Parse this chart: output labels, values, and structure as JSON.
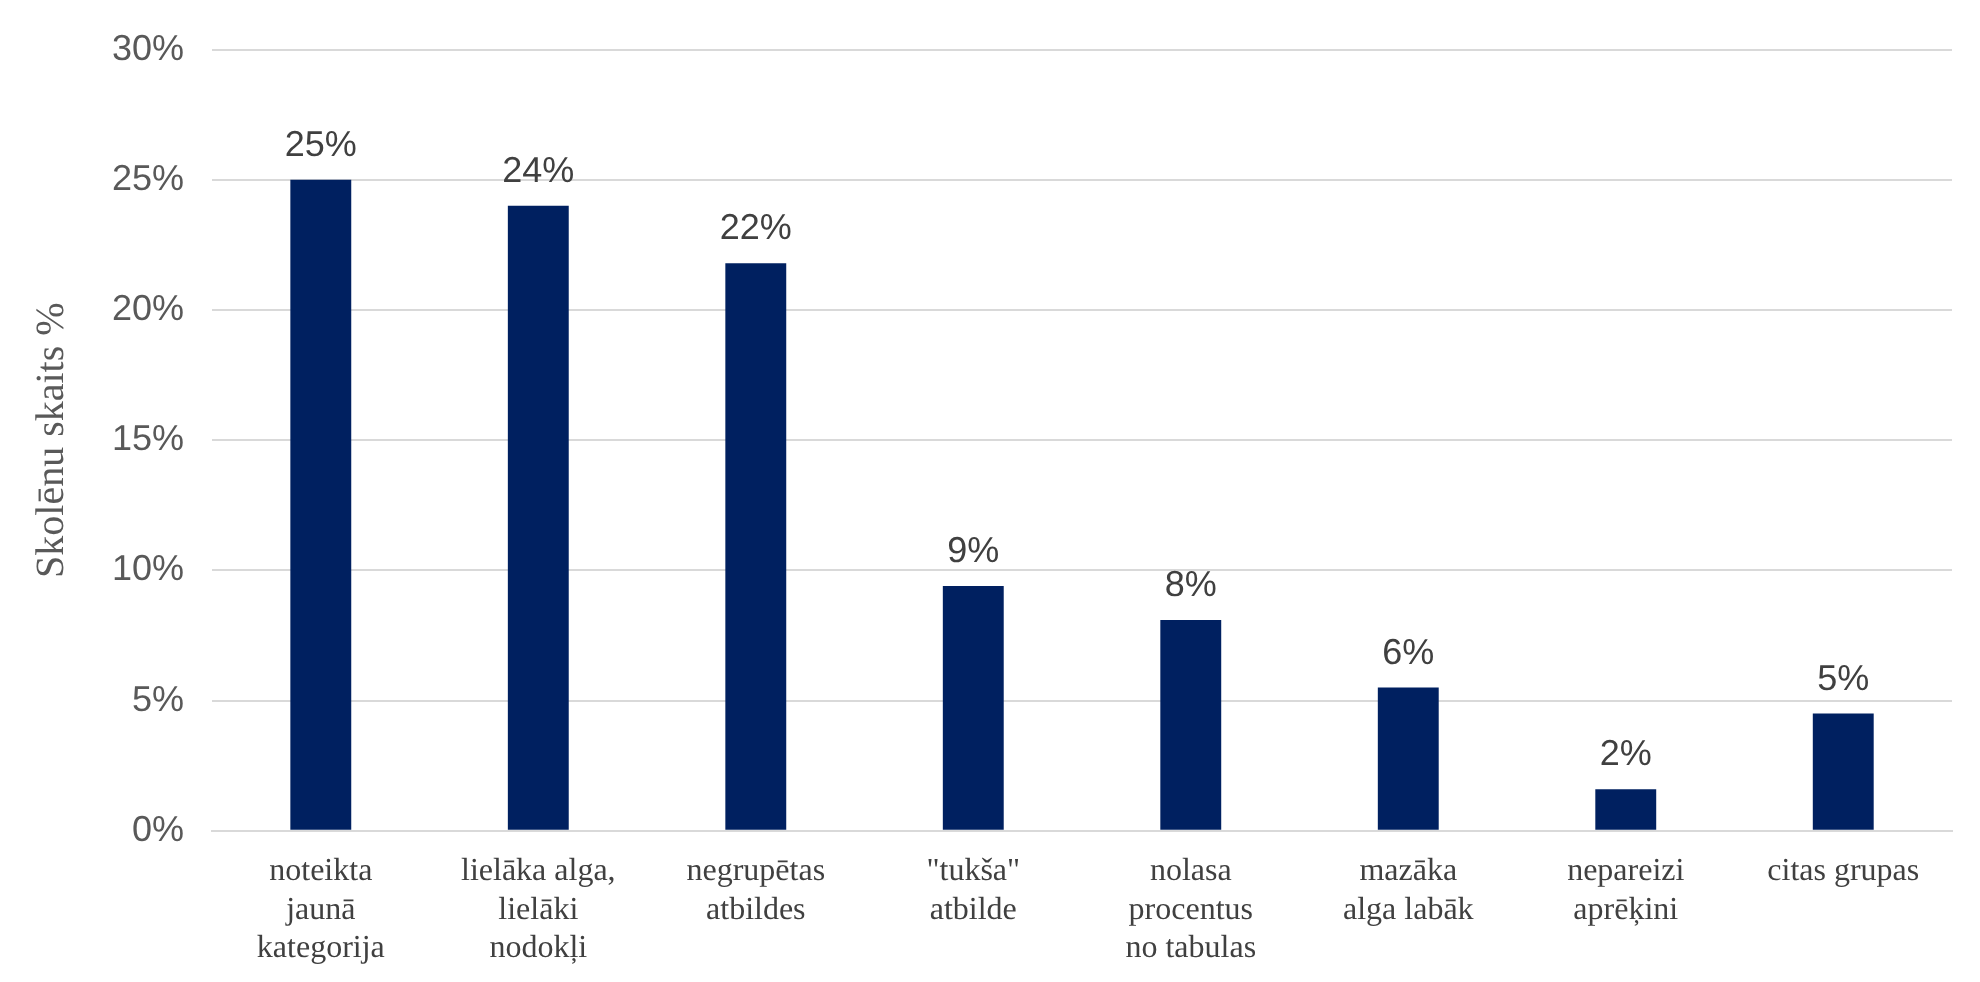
{
  "chart_data": {
    "type": "bar",
    "ylabel": "Skolēnu skaits %",
    "categories": [
      "noteikta\njaunā\nkategorija",
      "lielāka alga,\nlielāki\nnodokļi",
      "negrupētas\natbildes",
      "\"tukša\"\natbilde",
      "nolasa\nprocentus\nno tabulas",
      "mazāka\nalga labāk",
      "nepareizi\naprēķini",
      "citas grupas"
    ],
    "values": [
      25,
      24,
      21.8,
      9.4,
      8.1,
      5.5,
      1.6,
      4.5
    ],
    "value_labels": [
      "25%",
      "24%",
      "22%",
      "9%",
      "8%",
      "6%",
      "2%",
      "5%"
    ],
    "color": "#002060",
    "ylim": [
      0,
      30
    ],
    "yticks": [
      {
        "value": 0,
        "label": "0%"
      },
      {
        "value": 5,
        "label": "5%"
      },
      {
        "value": 10,
        "label": "10%"
      },
      {
        "value": 15,
        "label": "15%"
      },
      {
        "value": 20,
        "label": "20%"
      },
      {
        "value": 25,
        "label": "25%"
      },
      {
        "value": 30,
        "label": "30%"
      }
    ],
    "grid": "y"
  }
}
